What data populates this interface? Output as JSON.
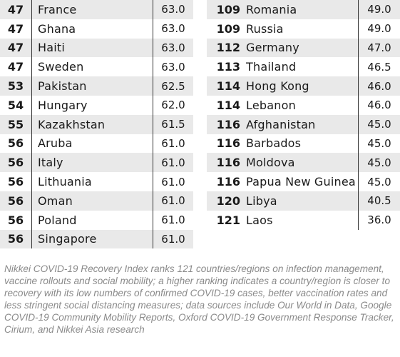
{
  "left_table": [
    {
      "rank": "47",
      "country": "France",
      "score": "63.0"
    },
    {
      "rank": "47",
      "country": "Ghana",
      "score": "63.0"
    },
    {
      "rank": "47",
      "country": "Haiti",
      "score": "63.0"
    },
    {
      "rank": "47",
      "country": "Sweden",
      "score": "63.0"
    },
    {
      "rank": "53",
      "country": "Pakistan",
      "score": "62.5"
    },
    {
      "rank": "54",
      "country": "Hungary",
      "score": "62.0"
    },
    {
      "rank": "55",
      "country": "Kazakhstan",
      "score": "61.5"
    },
    {
      "rank": "56",
      "country": "Aruba",
      "score": "61.0"
    },
    {
      "rank": "56",
      "country": "Italy",
      "score": "61.0"
    },
    {
      "rank": "56",
      "country": "Lithuania",
      "score": "61.0"
    },
    {
      "rank": "56",
      "country": "Oman",
      "score": "61.0"
    },
    {
      "rank": "56",
      "country": "Poland",
      "score": "61.0"
    },
    {
      "rank": "56",
      "country": "Singapore",
      "score": "61.0"
    }
  ],
  "right_table": [
    {
      "rank": "109",
      "country": "Romania",
      "score": "49.0"
    },
    {
      "rank": "109",
      "country": "Russia",
      "score": "49.0"
    },
    {
      "rank": "112",
      "country": "Germany",
      "score": "47.0"
    },
    {
      "rank": "113",
      "country": "Thailand",
      "score": "46.5"
    },
    {
      "rank": "114",
      "country": "Hong Kong",
      "score": "46.0"
    },
    {
      "rank": "114",
      "country": "Lebanon",
      "score": "46.0"
    },
    {
      "rank": "116",
      "country": "Afghanistan",
      "score": "45.0"
    },
    {
      "rank": "116",
      "country": "Barbados",
      "score": "45.0"
    },
    {
      "rank": "116",
      "country": "Moldova",
      "score": "45.0"
    },
    {
      "rank": "116",
      "country": "Papua New Guinea",
      "score": "45.0"
    },
    {
      "rank": "120",
      "country": "Libya",
      "score": "40.5"
    },
    {
      "rank": "121",
      "country": "Laos",
      "score": "36.0"
    }
  ],
  "footnote": "Nikkei COVID-19 Recovery Index ranks 121 countries/regions on infection management, vaccine rollouts and social mobility; a higher ranking indicates a country/region is closer to recovery with its low numbers of confirmed COVID-19 cases, better vaccination rates and less stringent social distancing measures; data sources include Our World in Data, Google COVID-19 Community Mobility Reports, Oxford COVID-19 Government Response Tracker, Cirium, and Nikkei Asia research",
  "colors": {
    "shade": "#e9e9e9",
    "footnote": "#8a8a8a",
    "text": "#1a1a1a"
  }
}
